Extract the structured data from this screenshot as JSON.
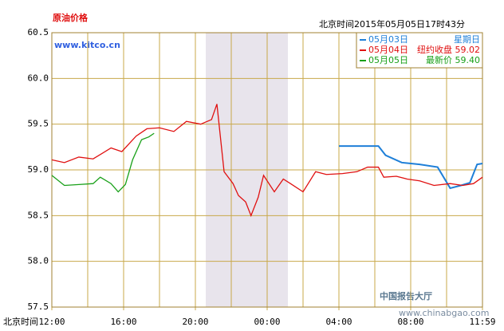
{
  "chart_data": {
    "type": "line",
    "title": "原油价格",
    "subtitle": "北京时间2015年05月05日17时43分",
    "source": "www.kitco.cn",
    "x_axis_label": "北京时间",
    "watermark": "中国报告大厅",
    "watermark_url": "www.chinabgao.com",
    "xlim": [
      0,
      24
    ],
    "xticks": [
      {
        "value": 0,
        "label": "12:00"
      },
      {
        "value": 4,
        "label": "16:00"
      },
      {
        "value": 8,
        "label": "20:00"
      },
      {
        "value": 12,
        "label": "00:00"
      },
      {
        "value": 16,
        "label": "04:00"
      },
      {
        "value": 20,
        "label": "08:00"
      },
      {
        "value": 24,
        "label": "11:59"
      }
    ],
    "ylim": [
      57.5,
      60.5
    ],
    "yticks": [
      57.5,
      {
        "value": 58,
        "label": "58.0"
      },
      58.5,
      {
        "value": 59,
        "label": "59.0"
      },
      59.5,
      {
        "value": 60,
        "label": "60.0"
      },
      60.5
    ],
    "grid": true,
    "series": [
      {
        "name": "05月03日",
        "note": "星期日",
        "color": "#1e7fd8",
        "x": [
          16,
          17,
          18.2,
          18.6,
          19.5,
          20.5,
          21.5,
          22.2,
          22.8,
          23.3,
          23.7,
          24
        ],
        "values": [
          59.26,
          59.26,
          59.26,
          59.16,
          59.08,
          59.06,
          59.03,
          58.8,
          58.83,
          58.86,
          59.06,
          59.07
        ]
      },
      {
        "name": "05月04日",
        "note": "纽约收盘 59.02",
        "color": "#e01010",
        "x": [
          0,
          0.7,
          1.5,
          2.3,
          3.3,
          3.9,
          4.7,
          5.3,
          6,
          6.8,
          7.5,
          8.3,
          8.9,
          9.2,
          9.6,
          10.1,
          10.4,
          10.8,
          11.1,
          11.5,
          11.8,
          12.4,
          12.9,
          13.3,
          14,
          14.7,
          15.3,
          16.2,
          17,
          17.6,
          18.2,
          18.5,
          19.2,
          19.8,
          20.5,
          21.3,
          22.2,
          22.9,
          23.5,
          24
        ],
        "values": [
          59.11,
          59.08,
          59.14,
          59.12,
          59.24,
          59.2,
          59.37,
          59.45,
          59.46,
          59.42,
          59.53,
          59.5,
          59.55,
          59.72,
          58.98,
          58.85,
          58.72,
          58.65,
          58.5,
          58.7,
          58.94,
          58.76,
          58.9,
          58.85,
          58.76,
          58.98,
          58.95,
          58.96,
          58.98,
          59.03,
          59.03,
          58.92,
          58.93,
          58.9,
          58.88,
          58.83,
          58.85,
          58.83,
          58.85,
          58.92
        ]
      },
      {
        "name": "05月05日",
        "note": "最新价 59.40",
        "color": "#18a018",
        "x": [
          0,
          0.7,
          1.5,
          2.3,
          2.7,
          3.3,
          3.7,
          4.1,
          4.5,
          5,
          5.4,
          5.7
        ],
        "values": [
          58.94,
          58.83,
          58.84,
          58.85,
          58.92,
          58.85,
          58.76,
          58.84,
          59.11,
          59.33,
          59.36,
          59.4
        ]
      }
    ]
  }
}
